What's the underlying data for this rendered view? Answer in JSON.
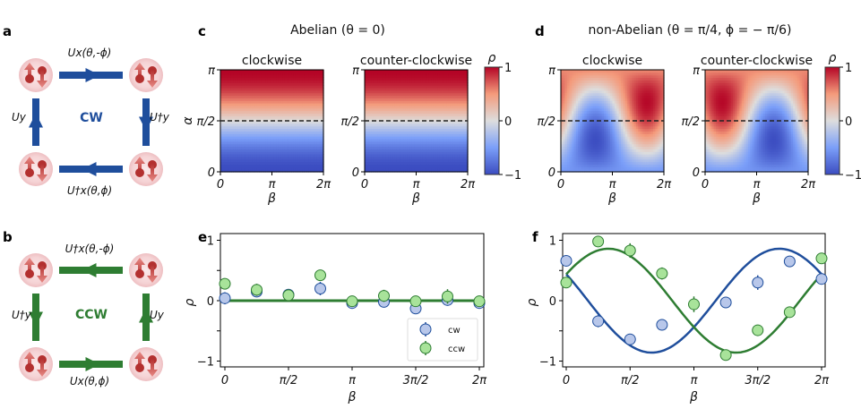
{
  "panels": {
    "a": {
      "label": "a",
      "direction_label": "CW",
      "color": "#1f4e9c",
      "ops": {
        "top": "Ux(θ,-ϕ)",
        "right": "U†y",
        "bottom": "U†x(θ,ϕ)",
        "left": "Uy"
      }
    },
    "b": {
      "label": "b",
      "direction_label": "CCW",
      "color": "#2e7d32",
      "ops": {
        "top": "U†x(θ,-ϕ)",
        "right": "Uy",
        "bottom": "Ux(θ,ϕ)",
        "left": "U†y"
      }
    },
    "c": {
      "label": "c",
      "title": "Abelian (θ = 0)"
    },
    "d": {
      "label": "d",
      "title": "non-Abelian (θ = π/4, ϕ = − π/6)"
    },
    "e": {
      "label": "e"
    },
    "f": {
      "label": "f"
    }
  },
  "chart_data": [
    {
      "id": "c",
      "type": "heatmap",
      "title": "Abelian (θ = 0)",
      "subplots": [
        {
          "title": "clockwise",
          "model": "abelian"
        },
        {
          "title": "counter-clockwise",
          "model": "abelian"
        }
      ],
      "xlabel": "β",
      "ylabel": "α",
      "xticks": [
        "0",
        "π",
        "2π"
      ],
      "yticks": [
        "0",
        "π/2",
        "π"
      ],
      "xlim": [
        0,
        6.2832
      ],
      "ylim": [
        0,
        3.1416
      ],
      "dashed_line_y": "π/2",
      "colorbar": {
        "label": "ρ",
        "range": [
          -1,
          1
        ],
        "ticks": [
          "−1",
          "0",
          "1"
        ],
        "colormap": "coolwarm"
      }
    },
    {
      "id": "d",
      "type": "heatmap",
      "title": "non-Abelian (θ = π/4, ϕ = − π/6)",
      "subplots": [
        {
          "title": "clockwise",
          "model": "nonabelian_cw"
        },
        {
          "title": "counter-clockwise",
          "model": "nonabelian_ccw"
        }
      ],
      "xlabel": "β",
      "ylabel": "",
      "xticks": [
        "0",
        "π",
        "2π"
      ],
      "yticks": [
        "0",
        "π/2",
        "π"
      ],
      "xlim": [
        0,
        6.2832
      ],
      "ylim": [
        0,
        3.1416
      ],
      "dashed_line_y": "π/2",
      "colorbar": {
        "label": "ρ",
        "range": [
          -1,
          1
        ],
        "ticks": [
          "−1",
          "0",
          "1"
        ],
        "colormap": "coolwarm"
      }
    },
    {
      "id": "e",
      "type": "scatter",
      "xlabel": "β",
      "ylabel": "ρ",
      "xticks": [
        "0",
        "π/2",
        "π",
        "3π/2",
        "2π"
      ],
      "yticks": [
        "−1",
        "0",
        "1"
      ],
      "xlim": [
        0,
        6.2832
      ],
      "ylim": [
        -1.1,
        1.1
      ],
      "x_units_pi": [
        0,
        0.25,
        0.5,
        0.75,
        1,
        1.25,
        1.5,
        1.75,
        2
      ],
      "series": [
        {
          "name": "CW",
          "color": "#1f4e9c",
          "fill": "#b8c7ea",
          "values": [
            0.04,
            0.15,
            0.1,
            0.2,
            -0.04,
            -0.02,
            -0.13,
            0.01,
            -0.04
          ],
          "errors": [
            0.1,
            0.09,
            0.08,
            0.11,
            0.06,
            0.06,
            0.08,
            0.06,
            0.07
          ]
        },
        {
          "name": "CCW",
          "color": "#2e7d32",
          "fill": "#a8e39a",
          "values": [
            0.28,
            0.18,
            0.09,
            0.42,
            -0.01,
            0.08,
            -0.01,
            0.07,
            -0.01
          ],
          "errors": [
            0.09,
            0.1,
            0.06,
            0.05,
            0.06,
            0.1,
            0.06,
            0.12,
            0.06
          ]
        }
      ],
      "fit_line": {
        "value": 0,
        "color": "#2e7d32"
      },
      "legend": {
        "placement": "lower-right",
        "entries": [
          "CW",
          "CCW"
        ]
      }
    },
    {
      "id": "f",
      "type": "scatter",
      "xlabel": "β",
      "ylabel": "ρ",
      "xticks": [
        "0",
        "π/2",
        "π",
        "3π/2",
        "2π"
      ],
      "yticks": [
        "−1",
        "0",
        "1"
      ],
      "xlim": [
        0,
        6.2832
      ],
      "ylim": [
        -1.1,
        1.1
      ],
      "x_units_pi": [
        0,
        0.25,
        0.5,
        0.75,
        1,
        1.25,
        1.5,
        1.75,
        2
      ],
      "series": [
        {
          "name": "CW",
          "color": "#1f4e9c",
          "fill": "#b8c7ea",
          "values": [
            0.66,
            -0.34,
            -0.64,
            -0.4,
            null,
            -0.03,
            0.3,
            0.65,
            0.36
          ],
          "errors": [
            0.08,
            0.1,
            0.05,
            0.05,
            0,
            0.04,
            0.12,
            0.08,
            0.05
          ]
        },
        {
          "name": "CCW",
          "color": "#2e7d32",
          "fill": "#a8e39a",
          "values": [
            0.3,
            0.98,
            0.83,
            0.45,
            -0.06,
            -0.9,
            -0.49,
            -0.19,
            0.7
          ],
          "errors": [
            0.05,
            0.04,
            0.12,
            0.1,
            0.13,
            0.04,
            0.05,
            0.06,
            0.04
          ]
        }
      ],
      "fits": [
        {
          "name": "CW fit",
          "color": "#1f4e9c",
          "amplitude": 0.86,
          "phase_pi": 1.67
        },
        {
          "name": "CCW fit",
          "color": "#2e7d32",
          "amplitude": 0.86,
          "phase_pi": 0.33
        }
      ]
    }
  ]
}
